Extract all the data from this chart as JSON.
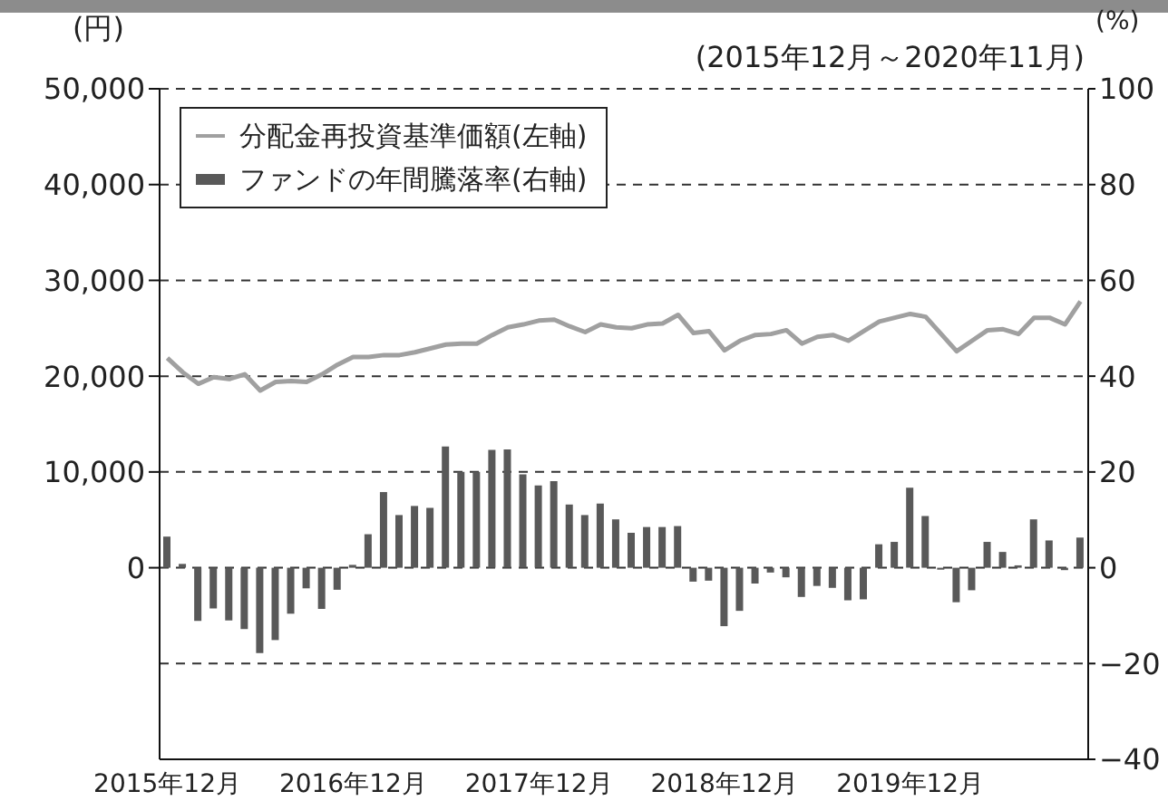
{
  "chart_data": {
    "type": "bar",
    "subtitle": "(2015年12月～2020年11月)",
    "ylabel": "(円)",
    "y2label": "(%)",
    "categories": [
      "2015年12月",
      null,
      null,
      null,
      null,
      null,
      null,
      null,
      null,
      null,
      null,
      null,
      "2016年12月",
      null,
      null,
      null,
      null,
      null,
      null,
      null,
      null,
      null,
      null,
      null,
      "2017年12月",
      null,
      null,
      null,
      null,
      null,
      null,
      null,
      null,
      null,
      null,
      null,
      "2018年12月",
      null,
      null,
      null,
      null,
      null,
      null,
      null,
      null,
      null,
      null,
      null,
      "2019年12月",
      null,
      null,
      null,
      null,
      null,
      null,
      null,
      null,
      null,
      null,
      null
    ],
    "series": [
      {
        "name": "分配金再投資基準価額(左軸)",
        "type": "line",
        "color": "#a0a0a0",
        "values": [
          21900,
          20400,
          19200,
          19900,
          19700,
          20200,
          18500,
          19400,
          19500,
          19400,
          20200,
          21200,
          22000,
          22000,
          22200,
          22200,
          22500,
          22900,
          23300,
          23400,
          23400,
          24300,
          25100,
          25400,
          25800,
          25900,
          25200,
          24600,
          25400,
          25100,
          25000,
          25400,
          25500,
          26400,
          24500,
          24700,
          22700,
          23700,
          24300,
          24400,
          24800,
          23400,
          24100,
          24300,
          23700,
          24700,
          25700,
          26100,
          26500,
          26200,
          24400,
          22600,
          23700,
          24800,
          24900,
          24400,
          26100,
          26100,
          25400,
          27800
        ]
      },
      {
        "name": "ファンドの年間騰落率(右軸)",
        "axis": "y2",
        "color": "#595959",
        "values": [
          6.5,
          0.8,
          -11.1,
          -8.5,
          -11,
          -12.8,
          -17.8,
          -15.1,
          -9.6,
          -4.3,
          -8.6,
          -4.6,
          0.6,
          7,
          15.8,
          11,
          12.9,
          12.5,
          25.3,
          20,
          20,
          24.6,
          24.7,
          19.5,
          17.2,
          18.1,
          13.2,
          11,
          13.4,
          10.1,
          7.3,
          8.5,
          8.5,
          8.7,
          -2.9,
          -2.7,
          -12.2,
          -9,
          -3.3,
          -1,
          -2,
          -6.1,
          -3.8,
          -4.2,
          -6.8,
          -6.6,
          4.9,
          5.4,
          16.7,
          10.8,
          -0.4,
          -7.2,
          -4.7,
          5.4,
          3.3,
          0.5,
          10.1,
          5.7,
          -0.5,
          6.3
        ]
      }
    ],
    "ylim": [
      -20000,
      50000
    ],
    "yticks": [
      0,
      {
        "value": 10000,
        "label": "10,000"
      },
      {
        "value": 20000,
        "label": "20,000"
      },
      {
        "value": 30000,
        "label": "30,000"
      },
      {
        "value": 40000,
        "label": "40,000"
      },
      {
        "value": 50000,
        "label": "50,000"
      }
    ],
    "y2lim": [
      -40,
      100
    ],
    "y2ticks": [
      {
        "value": -40,
        "label": "−40"
      },
      {
        "value": -20,
        "label": "−20"
      },
      0,
      20,
      40,
      60,
      80,
      100
    ],
    "grid": "y",
    "legend": "top left"
  }
}
